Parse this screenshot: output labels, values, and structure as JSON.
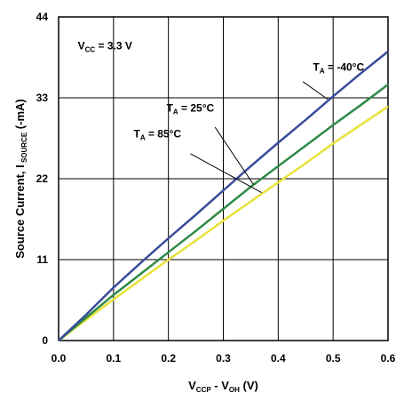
{
  "chart_data": {
    "type": "line",
    "xlabel": {
      "main": "V",
      "sub1": "CCP",
      "mid": " - V",
      "sub2": "OH",
      "tail": " (V)"
    },
    "ylabel": {
      "main": "Source Current, I",
      "sub": " SOURCE",
      "tail": " (-mA)"
    },
    "xlim": [
      0,
      0.6
    ],
    "ylim": [
      0,
      44
    ],
    "xticks": [
      "0.0",
      "0.1",
      "0.2",
      "0.3",
      "0.4",
      "0.5",
      "0.6"
    ],
    "yticks": [
      "0",
      "11",
      "22",
      "33",
      "44"
    ],
    "grid": true,
    "annotation": {
      "main": "V",
      "sub": "CC",
      "tail": " = 3.3 V"
    },
    "series": [
      {
        "name": "T_A = -40°C",
        "label": {
          "main": "T",
          "sub": "A",
          "tail": " = -40°C"
        },
        "color": "#3a4b9a",
        "x": [
          0,
          0.05,
          0.1,
          0.15,
          0.2,
          0.25,
          0.3,
          0.35,
          0.4,
          0.45,
          0.5,
          0.55,
          0.6
        ],
        "y": [
          0,
          3.5,
          7.2,
          10.6,
          13.9,
          17.1,
          20.4,
          23.7,
          26.9,
          30.0,
          33.2,
          36.3,
          39.3
        ]
      },
      {
        "name": "T_A = 25°C",
        "label": {
          "main": "T",
          "sub": "A",
          "tail": " = 25°C"
        },
        "color": "#2f8a46",
        "x": [
          0,
          0.05,
          0.1,
          0.15,
          0.2,
          0.25,
          0.3,
          0.35,
          0.4,
          0.45,
          0.5,
          0.55,
          0.6
        ],
        "y": [
          0,
          3.1,
          6.2,
          9.1,
          12.0,
          14.9,
          17.9,
          20.9,
          23.7,
          26.5,
          29.3,
          32.0,
          34.8
        ]
      },
      {
        "name": "T_A = 85°C",
        "label": {
          "main": "T",
          "sub": "A",
          "tail": " = 85°C"
        },
        "color": "#e8e23a",
        "x": [
          0,
          0.05,
          0.1,
          0.15,
          0.2,
          0.25,
          0.3,
          0.35,
          0.4,
          0.45,
          0.5,
          0.55,
          0.6
        ],
        "y": [
          0,
          2.8,
          5.6,
          8.3,
          11.0,
          13.6,
          16.3,
          18.9,
          21.5,
          24.1,
          26.8,
          29.3,
          31.8
        ]
      }
    ]
  }
}
